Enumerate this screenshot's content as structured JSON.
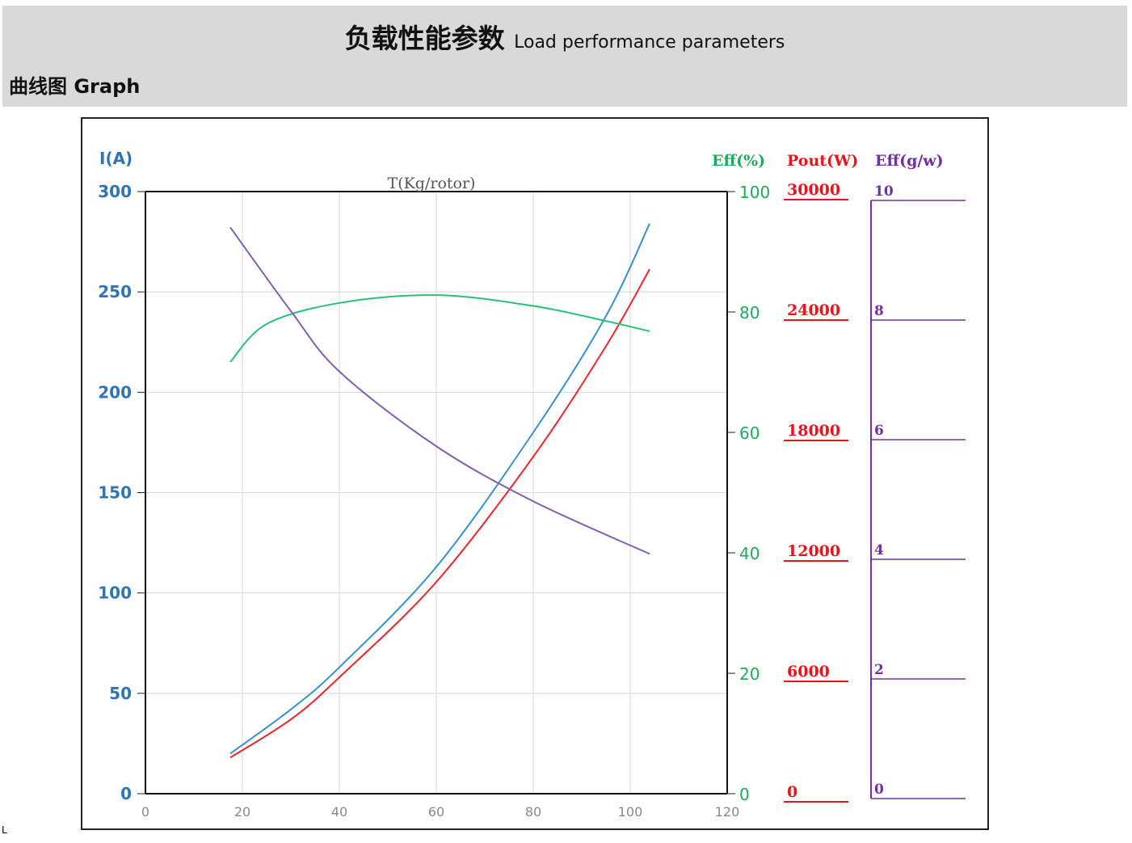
{
  "header": {
    "title_cn": "负载性能参数",
    "title_en": "Load performance parameters",
    "subtitle": "曲线图 Graph"
  },
  "chart_data": {
    "type": "line",
    "xlabel": "T(Kg/rotor)",
    "xlim": [
      0,
      120
    ],
    "x_ticks": [
      "0",
      "20",
      "40",
      "60",
      "80",
      "100",
      "120"
    ],
    "axes": {
      "current": {
        "label": "I(A)",
        "ticks": [
          "0",
          "50",
          "100",
          "150",
          "200",
          "250",
          "300"
        ],
        "range": [
          0,
          300
        ],
        "color": "#2e75b6"
      },
      "eff_pct": {
        "label": "Eff(%)",
        "ticks": [
          "0",
          "20",
          "40",
          "60",
          "80",
          "100"
        ],
        "range": [
          0,
          100
        ],
        "color": "#1faa5c"
      },
      "pout": {
        "label": "Pout(W)",
        "ticks": [
          "0",
          "6000",
          "12000",
          "18000",
          "24000",
          "30000"
        ],
        "range": [
          0,
          30000
        ],
        "color": "#e8161b"
      },
      "eff_gw": {
        "label": "Eff(g/w)",
        "ticks": [
          "0",
          "2",
          "4",
          "6",
          "8",
          "10"
        ],
        "range": [
          0,
          10
        ],
        "color": "#7030a0"
      }
    },
    "series": [
      {
        "name": "I(A)",
        "axis": "current",
        "color": "#3a8fd0",
        "x": [
          17.5,
          30,
          40,
          60,
          80,
          95,
          104
        ],
        "y": [
          20,
          42,
          63,
          113,
          180,
          238,
          284
        ]
      },
      {
        "name": "Pout(W)",
        "axis": "pout",
        "color": "#e8262b",
        "x": [
          17.5,
          30,
          40,
          60,
          80,
          95,
          104
        ],
        "y": [
          1800,
          3700,
          5800,
          10550,
          16790,
          22300,
          26130
        ]
      },
      {
        "name": "Eff(%)",
        "axis": "eff_pct",
        "color": "#2dbf7a",
        "x": [
          17.5,
          25,
          40,
          60,
          80,
          95,
          104
        ],
        "y": [
          71.7,
          78,
          81.5,
          82.8,
          81,
          78.5,
          76.8
        ]
      },
      {
        "name": "Eff(g/w)",
        "axis": "eff_gw",
        "color": "#8060b0",
        "x": [
          17.5,
          30,
          40,
          60,
          80,
          104
        ],
        "y": [
          9.55,
          8.15,
          7.14,
          5.89,
          4.97,
          4.09
        ]
      }
    ]
  },
  "footnote": "L"
}
